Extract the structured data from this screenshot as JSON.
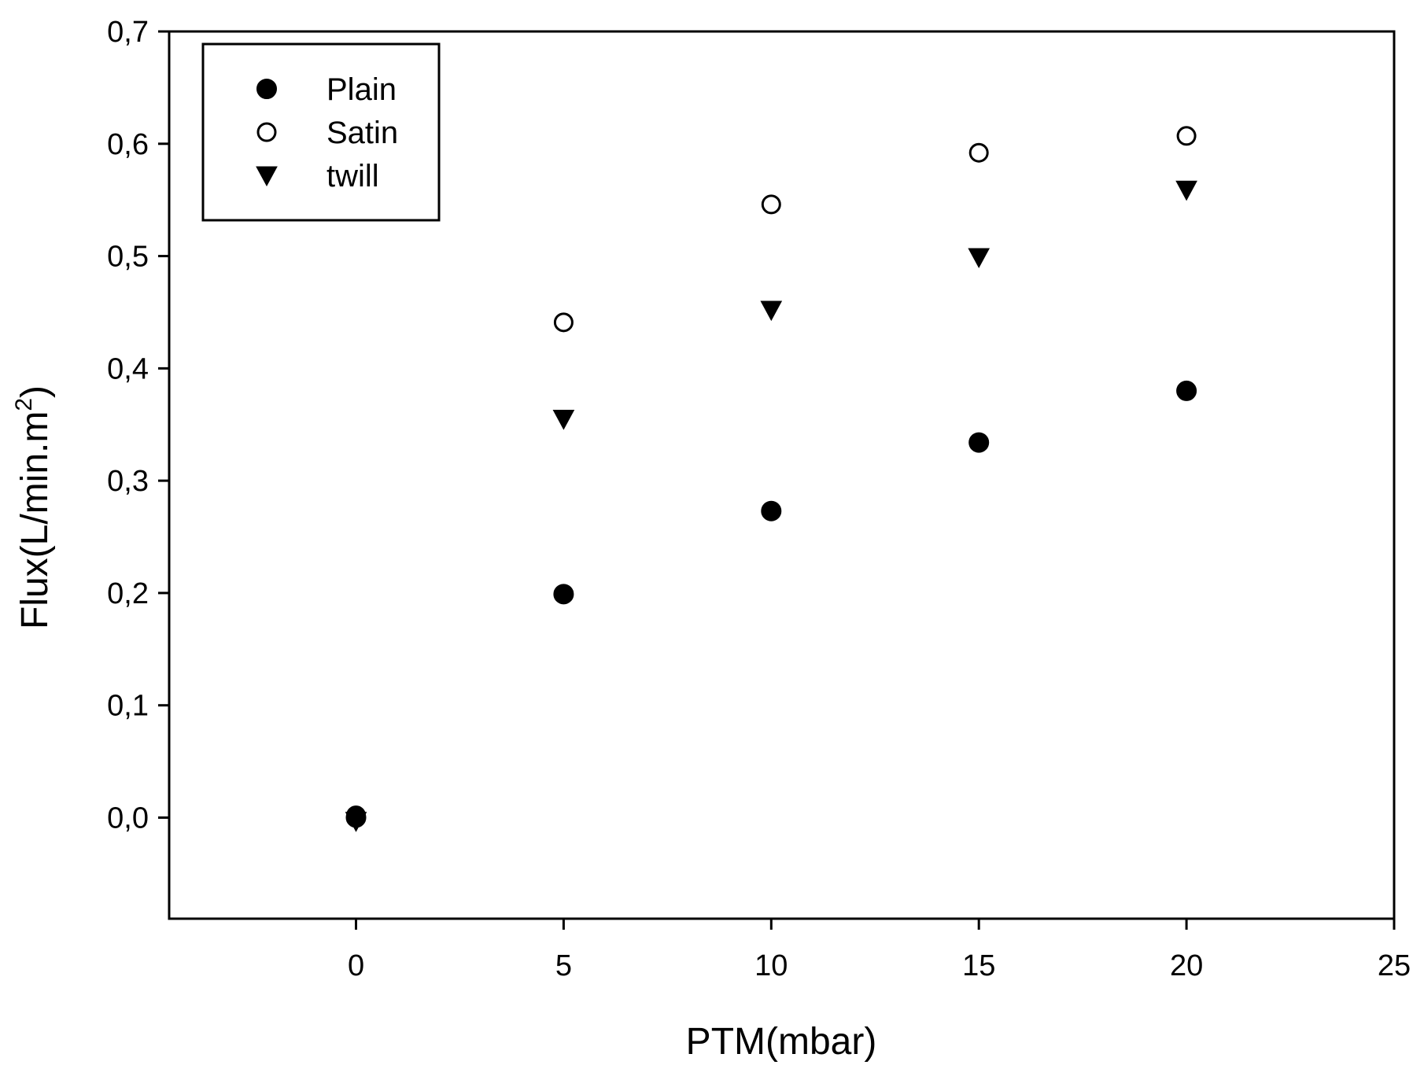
{
  "chart_data": {
    "type": "scatter",
    "title": "",
    "xlabel": "PTM(mbar)",
    "ylabel": "Flux(L/min.m",
    "ylabel_superscript": "2",
    "ylabel_suffix": ")",
    "xlim": [
      -4.5,
      25
    ],
    "ylim": [
      -0.09,
      0.7
    ],
    "xticks": [
      0,
      5,
      10,
      15,
      20,
      25
    ],
    "xtick_labels": [
      "0",
      "5",
      "10",
      "15",
      "20",
      "25"
    ],
    "yticks": [
      0.0,
      0.1,
      0.2,
      0.3,
      0.4,
      0.5,
      0.6,
      0.7
    ],
    "ytick_labels": [
      "0,0",
      "0,1",
      "0,2",
      "0,3",
      "0,4",
      "0,5",
      "0,6",
      "0,7"
    ],
    "grid": false,
    "legend_position": "top-left",
    "series": [
      {
        "name": "Plain",
        "marker": "filled-circle",
        "color": "#000000",
        "x": [
          0,
          5,
          10,
          15,
          20
        ],
        "y": [
          0.0,
          0.199,
          0.273,
          0.334,
          0.38
        ]
      },
      {
        "name": "Satin",
        "marker": "open-circle",
        "color": "#000000",
        "x": [
          0,
          5,
          10,
          15,
          20
        ],
        "y": [
          0.002,
          0.441,
          0.546,
          0.592,
          0.607
        ]
      },
      {
        "name": "twill",
        "marker": "filled-triangle-down",
        "color": "#000000",
        "x": [
          0,
          5,
          10,
          15,
          20
        ],
        "y": [
          -0.003,
          0.355,
          0.452,
          0.499,
          0.559
        ]
      }
    ]
  }
}
